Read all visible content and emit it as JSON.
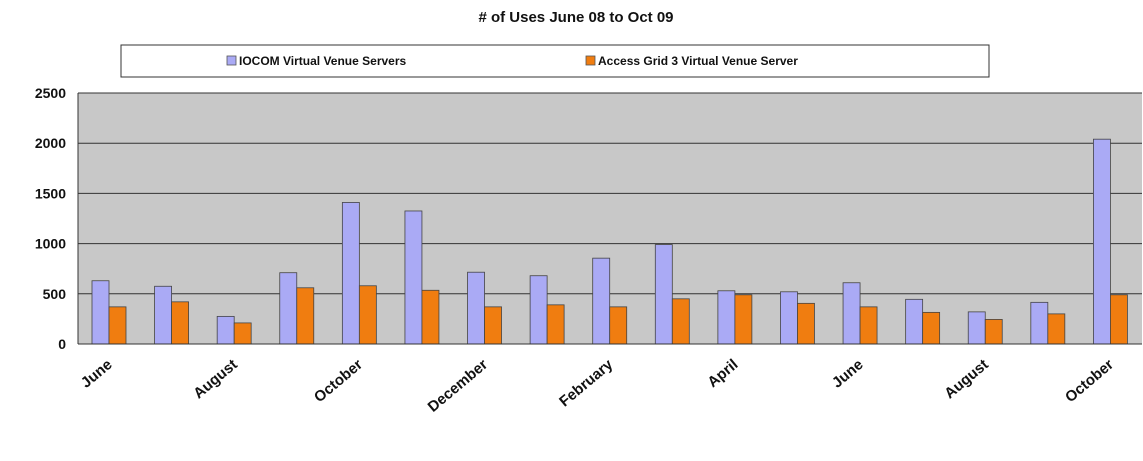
{
  "chart_data": {
    "type": "bar",
    "title": "# of Uses June 08 to Oct 09",
    "xlabel": "",
    "ylabel": "",
    "ylim": [
      0,
      2500
    ],
    "yticks": [
      0,
      500,
      1000,
      1500,
      2000,
      2500
    ],
    "grid": true,
    "legend_position": "top",
    "x_tick_labels": [
      "June",
      "August",
      "October",
      "December",
      "February",
      "April",
      "June",
      "August",
      "October"
    ],
    "x_tick_label_every": 2,
    "series": [
      {
        "name": "IOCOM Virtual Venue Servers",
        "color": "#aaaaf5",
        "values": [
          630,
          575,
          275,
          710,
          1410,
          1325,
          715,
          680,
          855,
          990,
          530,
          520,
          610,
          445,
          320,
          415,
          2040
        ]
      },
      {
        "name": "Access Grid 3 Virtual Venue Server",
        "color": "#f07d10",
        "values": [
          370,
          420,
          210,
          560,
          580,
          535,
          370,
          390,
          370,
          450,
          490,
          405,
          370,
          315,
          245,
          300,
          490
        ]
      }
    ]
  }
}
